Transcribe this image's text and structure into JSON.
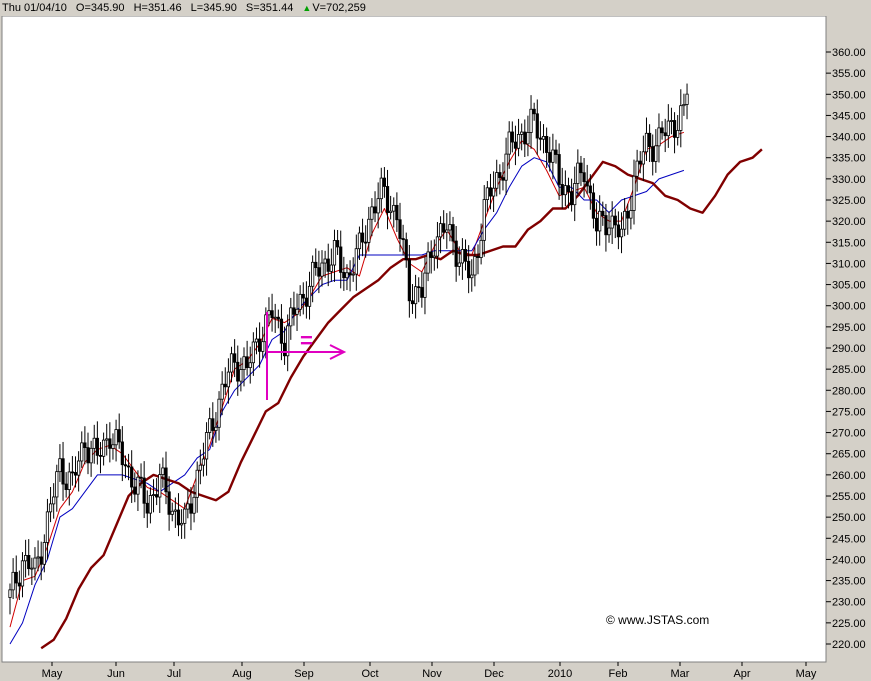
{
  "header": {
    "date": "Thu 01/04/10",
    "open": "O=345.90",
    "high": "H=351.46",
    "low": "L=345.90",
    "close": "S=351.44",
    "volume_arrow": "▲",
    "volume": "V=702,259"
  },
  "annotation": {
    "symbol": "="
  },
  "watermark": "© www.JSTAS.com",
  "chart_data": {
    "type": "candlestick",
    "title": "",
    "xlabel": "",
    "ylabel": "",
    "ylim": [
      217,
      362
    ],
    "y_ticks": [
      "360.00",
      "355.00",
      "350.00",
      "345.00",
      "340.00",
      "335.00",
      "330.00",
      "325.00",
      "320.00",
      "315.00",
      "310.00",
      "305.00",
      "300.00",
      "295.00",
      "290.00",
      "285.00",
      "280.00",
      "275.00",
      "270.00",
      "265.00",
      "260.00",
      "255.00",
      "250.00",
      "245.00",
      "240.00",
      "235.00",
      "230.00",
      "225.00",
      "220.00"
    ],
    "x_ticks": [
      "May",
      "Jun",
      "Jul",
      "Aug",
      "Sep",
      "Oct",
      "Nov",
      "Dec",
      "2010",
      "Feb",
      "Mar",
      "Apr",
      "May"
    ],
    "price_close": [
      [
        0,
        231
      ],
      [
        4,
        240
      ],
      [
        8,
        237
      ],
      [
        12,
        249
      ],
      [
        16,
        262
      ],
      [
        20,
        258
      ],
      [
        24,
        268
      ],
      [
        28,
        264
      ],
      [
        32,
        270
      ],
      [
        36,
        264
      ],
      [
        40,
        258
      ],
      [
        44,
        253
      ],
      [
        48,
        259
      ],
      [
        52,
        252
      ],
      [
        56,
        248
      ],
      [
        60,
        260
      ],
      [
        64,
        270
      ],
      [
        68,
        280
      ],
      [
        72,
        287
      ],
      [
        76,
        285
      ],
      [
        80,
        293
      ],
      [
        84,
        298
      ],
      [
        88,
        292
      ],
      [
        92,
        300
      ],
      [
        96,
        305
      ],
      [
        100,
        310
      ],
      [
        104,
        312
      ],
      [
        108,
        307
      ],
      [
        112,
        313
      ],
      [
        116,
        323
      ],
      [
        120,
        327
      ],
      [
        124,
        321
      ],
      [
        128,
        304
      ],
      [
        132,
        303
      ],
      [
        136,
        316
      ],
      [
        140,
        318
      ],
      [
        144,
        312
      ],
      [
        148,
        306
      ],
      [
        152,
        323
      ],
      [
        156,
        330
      ],
      [
        160,
        337
      ],
      [
        164,
        341
      ],
      [
        168,
        343
      ],
      [
        172,
        338
      ],
      [
        176,
        330
      ],
      [
        180,
        326
      ],
      [
        184,
        333
      ],
      [
        188,
        318
      ],
      [
        192,
        321
      ],
      [
        196,
        316
      ],
      [
        200,
        330
      ],
      [
        204,
        338
      ],
      [
        208,
        339
      ],
      [
        212,
        343
      ],
      [
        216,
        345
      ],
      [
        217,
        351
      ]
    ],
    "series": [
      {
        "name": "",
        "color": "#d00000",
        "values": [
          [
            0,
            224
          ],
          [
            4,
            235
          ],
          [
            8,
            236
          ],
          [
            12,
            243
          ],
          [
            16,
            252
          ],
          [
            20,
            256
          ],
          [
            24,
            263
          ],
          [
            28,
            266
          ],
          [
            32,
            267
          ],
          [
            36,
            265
          ],
          [
            40,
            261
          ],
          [
            44,
            257
          ],
          [
            48,
            256
          ],
          [
            52,
            254
          ],
          [
            56,
            252
          ],
          [
            60,
            260
          ],
          [
            64,
            267
          ],
          [
            68,
            276
          ],
          [
            72,
            285
          ],
          [
            76,
            287
          ],
          [
            80,
            291
          ],
          [
            84,
            297
          ],
          [
            88,
            296
          ],
          [
            92,
            298
          ],
          [
            96,
            302
          ],
          [
            100,
            307
          ],
          [
            104,
            308
          ],
          [
            108,
            309
          ],
          [
            112,
            307
          ],
          [
            116,
            317
          ],
          [
            120,
            323
          ],
          [
            124,
            316
          ],
          [
            128,
            310
          ],
          [
            132,
            308
          ],
          [
            136,
            314
          ],
          [
            140,
            318
          ],
          [
            144,
            313
          ],
          [
            148,
            312
          ],
          [
            152,
            320
          ],
          [
            156,
            328
          ],
          [
            160,
            334
          ],
          [
            164,
            339
          ],
          [
            168,
            337
          ],
          [
            172,
            332
          ],
          [
            176,
            326
          ],
          [
            180,
            327
          ],
          [
            184,
            328
          ],
          [
            188,
            322
          ],
          [
            192,
            320
          ],
          [
            196,
            320
          ],
          [
            200,
            328
          ],
          [
            204,
            337
          ],
          [
            208,
            338
          ],
          [
            212,
            340
          ],
          [
            216,
            341
          ]
        ]
      },
      {
        "name": "",
        "color": "#0000c0",
        "values": [
          [
            0,
            220
          ],
          [
            4,
            225
          ],
          [
            8,
            234
          ],
          [
            12,
            240
          ],
          [
            16,
            250
          ],
          [
            20,
            252
          ],
          [
            24,
            256
          ],
          [
            28,
            260
          ],
          [
            32,
            260
          ],
          [
            36,
            260
          ],
          [
            40,
            259
          ],
          [
            44,
            258
          ],
          [
            48,
            256
          ],
          [
            52,
            258
          ],
          [
            56,
            260
          ],
          [
            60,
            264
          ],
          [
            64,
            266
          ],
          [
            68,
            275
          ],
          [
            72,
            280
          ],
          [
            76,
            283
          ],
          [
            80,
            286
          ],
          [
            84,
            292
          ],
          [
            88,
            294
          ],
          [
            92,
            299
          ],
          [
            96,
            302
          ],
          [
            100,
            305
          ],
          [
            104,
            306
          ],
          [
            108,
            306
          ],
          [
            112,
            312
          ],
          [
            116,
            312
          ],
          [
            120,
            312
          ],
          [
            124,
            312
          ],
          [
            128,
            312
          ],
          [
            132,
            312
          ],
          [
            136,
            313
          ],
          [
            140,
            313
          ],
          [
            144,
            313
          ],
          [
            148,
            313
          ],
          [
            152,
            318
          ],
          [
            156,
            322
          ],
          [
            160,
            328
          ],
          [
            164,
            333
          ],
          [
            168,
            335
          ],
          [
            172,
            334
          ],
          [
            176,
            328
          ],
          [
            180,
            328
          ],
          [
            184,
            325
          ],
          [
            188,
            325
          ],
          [
            192,
            322
          ],
          [
            196,
            325
          ],
          [
            200,
            326
          ],
          [
            204,
            327
          ],
          [
            208,
            330
          ],
          [
            212,
            331
          ],
          [
            216,
            332
          ]
        ]
      },
      {
        "name": "",
        "color": "#800000",
        "values": [
          [
            10,
            219
          ],
          [
            14,
            221
          ],
          [
            18,
            226
          ],
          [
            22,
            233
          ],
          [
            26,
            238
          ],
          [
            30,
            241
          ],
          [
            34,
            248
          ],
          [
            38,
            255
          ],
          [
            42,
            258
          ],
          [
            46,
            260
          ],
          [
            50,
            259
          ],
          [
            54,
            258
          ],
          [
            58,
            256
          ],
          [
            62,
            255
          ],
          [
            66,
            254
          ],
          [
            70,
            256
          ],
          [
            74,
            263
          ],
          [
            78,
            269
          ],
          [
            82,
            275
          ],
          [
            86,
            277
          ],
          [
            90,
            283
          ],
          [
            94,
            288
          ],
          [
            98,
            292
          ],
          [
            102,
            296
          ],
          [
            106,
            299
          ],
          [
            110,
            302
          ],
          [
            114,
            304
          ],
          [
            118,
            306
          ],
          [
            122,
            309
          ],
          [
            126,
            311
          ],
          [
            130,
            311
          ],
          [
            134,
            312
          ],
          [
            138,
            311
          ],
          [
            142,
            313
          ],
          [
            146,
            312
          ],
          [
            150,
            312
          ],
          [
            154,
            313
          ],
          [
            158,
            314
          ],
          [
            162,
            314
          ],
          [
            166,
            318
          ],
          [
            170,
            320
          ],
          [
            174,
            323
          ],
          [
            178,
            323
          ],
          [
            182,
            326
          ],
          [
            186,
            330
          ],
          [
            190,
            334
          ],
          [
            194,
            333
          ],
          [
            198,
            331
          ],
          [
            202,
            330
          ],
          [
            206,
            329
          ],
          [
            210,
            326
          ],
          [
            214,
            325
          ],
          [
            218,
            323
          ],
          [
            222,
            322
          ],
          [
            226,
            326
          ],
          [
            230,
            331
          ],
          [
            234,
            334
          ],
          [
            238,
            335
          ],
          [
            241,
            337
          ]
        ]
      }
    ]
  }
}
